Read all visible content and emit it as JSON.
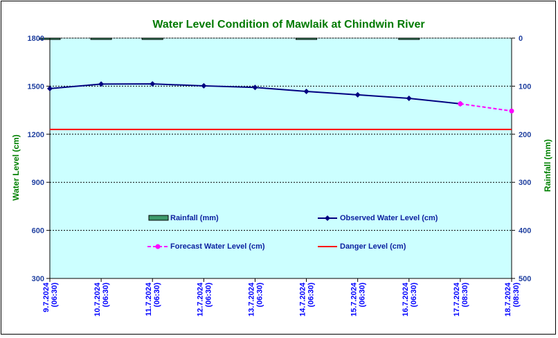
{
  "chart_data": {
    "type": "line",
    "title": "Water Level Condition of Mawlaik at Chindwin River",
    "ylabel": "Water Level (cm)",
    "y2label": "Rainfall (mm)",
    "ylim": [
      300,
      1800
    ],
    "yticks": [
      "1800",
      "1500",
      "1200",
      "900",
      "600",
      "300"
    ],
    "y2lim": [
      0,
      500
    ],
    "y2ticks": [
      "0",
      "100",
      "200",
      "300",
      "400",
      "500"
    ],
    "grid": true,
    "categories": [
      [
        "9.7.2024",
        "(06:30)"
      ],
      [
        "10.7.2024",
        "(06:30)"
      ],
      [
        "11.7.2024",
        "(06:30)"
      ],
      [
        "12.7.2024",
        "(06:30)"
      ],
      [
        "13.7.2024",
        "(06:30)"
      ],
      [
        "14.7.2024",
        "(06:30)"
      ],
      [
        "15.7.2024",
        "(06:30)"
      ],
      [
        "16.7.2024",
        "(06:30)"
      ],
      [
        "17.7.2024",
        "(08:30)"
      ],
      [
        "18.7.2024",
        "(08:30)"
      ]
    ],
    "series": [
      {
        "name": "Rainfall (mm)",
        "kind": "bar",
        "axis": "right",
        "color": "#3c9a6b",
        "values": [
          1,
          1,
          1,
          0,
          0,
          0.5,
          0,
          1,
          0,
          0
        ]
      },
      {
        "name": "Observed Water Level (cm)",
        "kind": "line",
        "axis": "left",
        "color": "#000080",
        "marker": "diamond",
        "values": [
          1485,
          1513,
          1514,
          1502,
          1492,
          1467,
          1446,
          1424,
          1390,
          null
        ]
      },
      {
        "name": "Forecast Water Level (cm)",
        "kind": "line",
        "axis": "left",
        "color": "#ff00ff",
        "dashed": true,
        "marker": "circle",
        "values": [
          null,
          null,
          null,
          null,
          null,
          null,
          null,
          null,
          1390,
          1345
        ]
      },
      {
        "name": "Danger Level (cm)",
        "kind": "hline",
        "axis": "left",
        "color": "#ff0000",
        "value": 1230
      }
    ],
    "legend_position": "inside-bottom"
  }
}
